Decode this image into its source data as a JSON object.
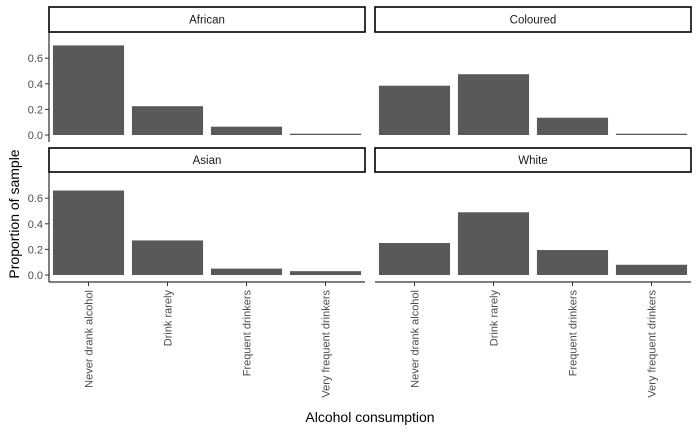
{
  "chart_data": {
    "type": "bar",
    "xlabel": "Alcohol consumption",
    "ylabel": "Proportion of sample",
    "ylim": [
      0,
      0.75
    ],
    "yticks": [
      0.0,
      0.2,
      0.4,
      0.6
    ],
    "ytick_labels": [
      "0.0",
      "0.2",
      "0.4",
      "0.6"
    ],
    "categories": [
      "Never drank alcohol",
      "Drink rarely",
      "Frequent drinkers",
      "Very frequent drinkers"
    ],
    "bar_color": "#595959",
    "grid": false,
    "facets": [
      {
        "name": "African",
        "values": [
          0.7,
          0.225,
          0.065,
          0.01
        ]
      },
      {
        "name": "Coloured",
        "values": [
          0.385,
          0.475,
          0.135,
          0.01
        ]
      },
      {
        "name": "Asian",
        "values": [
          0.66,
          0.27,
          0.05,
          0.03
        ]
      },
      {
        "name": "White",
        "values": [
          0.25,
          0.49,
          0.195,
          0.08
        ]
      }
    ]
  }
}
